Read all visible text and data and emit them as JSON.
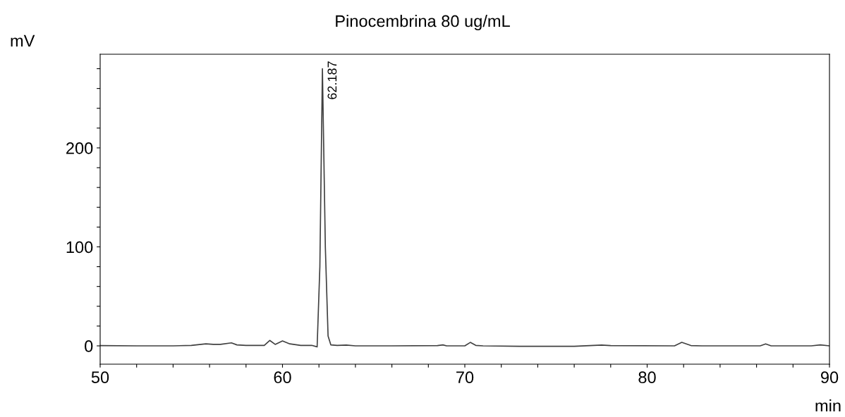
{
  "chart_data": {
    "type": "line",
    "title": "Pinocembrina 80 ug/mL",
    "xlabel": "min",
    "ylabel": "mV",
    "x": [
      50,
      52,
      54,
      55,
      55.8,
      56.2,
      56.6,
      57.2,
      57.5,
      58,
      59.0,
      59.3,
      59.6,
      60.0,
      60.4,
      61,
      61.6,
      61.9,
      62.05,
      62.19,
      62.35,
      62.5,
      62.65,
      63,
      63.5,
      64,
      66,
      68.5,
      68.8,
      69,
      70.0,
      70.3,
      70.6,
      71,
      73,
      76,
      77.5,
      78,
      81.5,
      81.9,
      82.4,
      83,
      86.2,
      86.5,
      86.8,
      89,
      89.5,
      90
    ],
    "series": [
      {
        "color": "#404040",
        "values": [
          0.3,
          0,
          0,
          0.5,
          2,
          1.5,
          1.5,
          3,
          1,
          0.5,
          0.5,
          5.5,
          1.5,
          5,
          2,
          0.5,
          0.5,
          -1,
          80,
          280,
          100,
          10,
          1,
          0.5,
          0.8,
          0,
          0,
          0.3,
          1,
          0,
          0,
          3.5,
          0.5,
          0,
          -0.5,
          -0.5,
          0.8,
          0.3,
          0,
          3.5,
          0.3,
          0,
          0,
          2,
          0,
          0,
          1,
          0
        ]
      }
    ],
    "annotations": [
      {
        "text": "62.187",
        "x": 62.187,
        "y": 280
      }
    ],
    "xlim": [
      50,
      90
    ],
    "ylim": [
      -18.5,
      294.6
    ],
    "xticks": [
      50,
      {
        "value": 52,
        "label": null
      },
      {
        "value": 54,
        "label": null
      },
      {
        "value": 56,
        "label": null
      },
      {
        "value": 58,
        "label": null
      },
      60,
      {
        "value": 62,
        "label": null
      },
      {
        "value": 64,
        "label": null
      },
      {
        "value": 66,
        "label": null
      },
      {
        "value": 68,
        "label": null
      },
      70,
      {
        "value": 72,
        "label": null
      },
      {
        "value": 74,
        "label": null
      },
      {
        "value": 76,
        "label": null
      },
      {
        "value": 78,
        "label": null
      },
      80,
      {
        "value": 82,
        "label": null
      },
      {
        "value": 84,
        "label": null
      },
      {
        "value": 86,
        "label": null
      },
      {
        "value": 88,
        "label": null
      },
      90
    ],
    "yticks": [
      0,
      {
        "value": 20,
        "label": null
      },
      {
        "value": 40,
        "label": null
      },
      {
        "value": 60,
        "label": null
      },
      {
        "value": 80,
        "label": null
      },
      100,
      {
        "value": 120,
        "label": null
      },
      {
        "value": 140,
        "label": null
      },
      {
        "value": 160,
        "label": null
      },
      {
        "value": 180,
        "label": null
      },
      200,
      {
        "value": 220,
        "label": null
      },
      {
        "value": 240,
        "label": null
      },
      {
        "value": 260,
        "label": null
      },
      {
        "value": 280,
        "label": null
      }
    ],
    "grid": false,
    "legend": false,
    "marker": "none",
    "line_style": "solid"
  }
}
